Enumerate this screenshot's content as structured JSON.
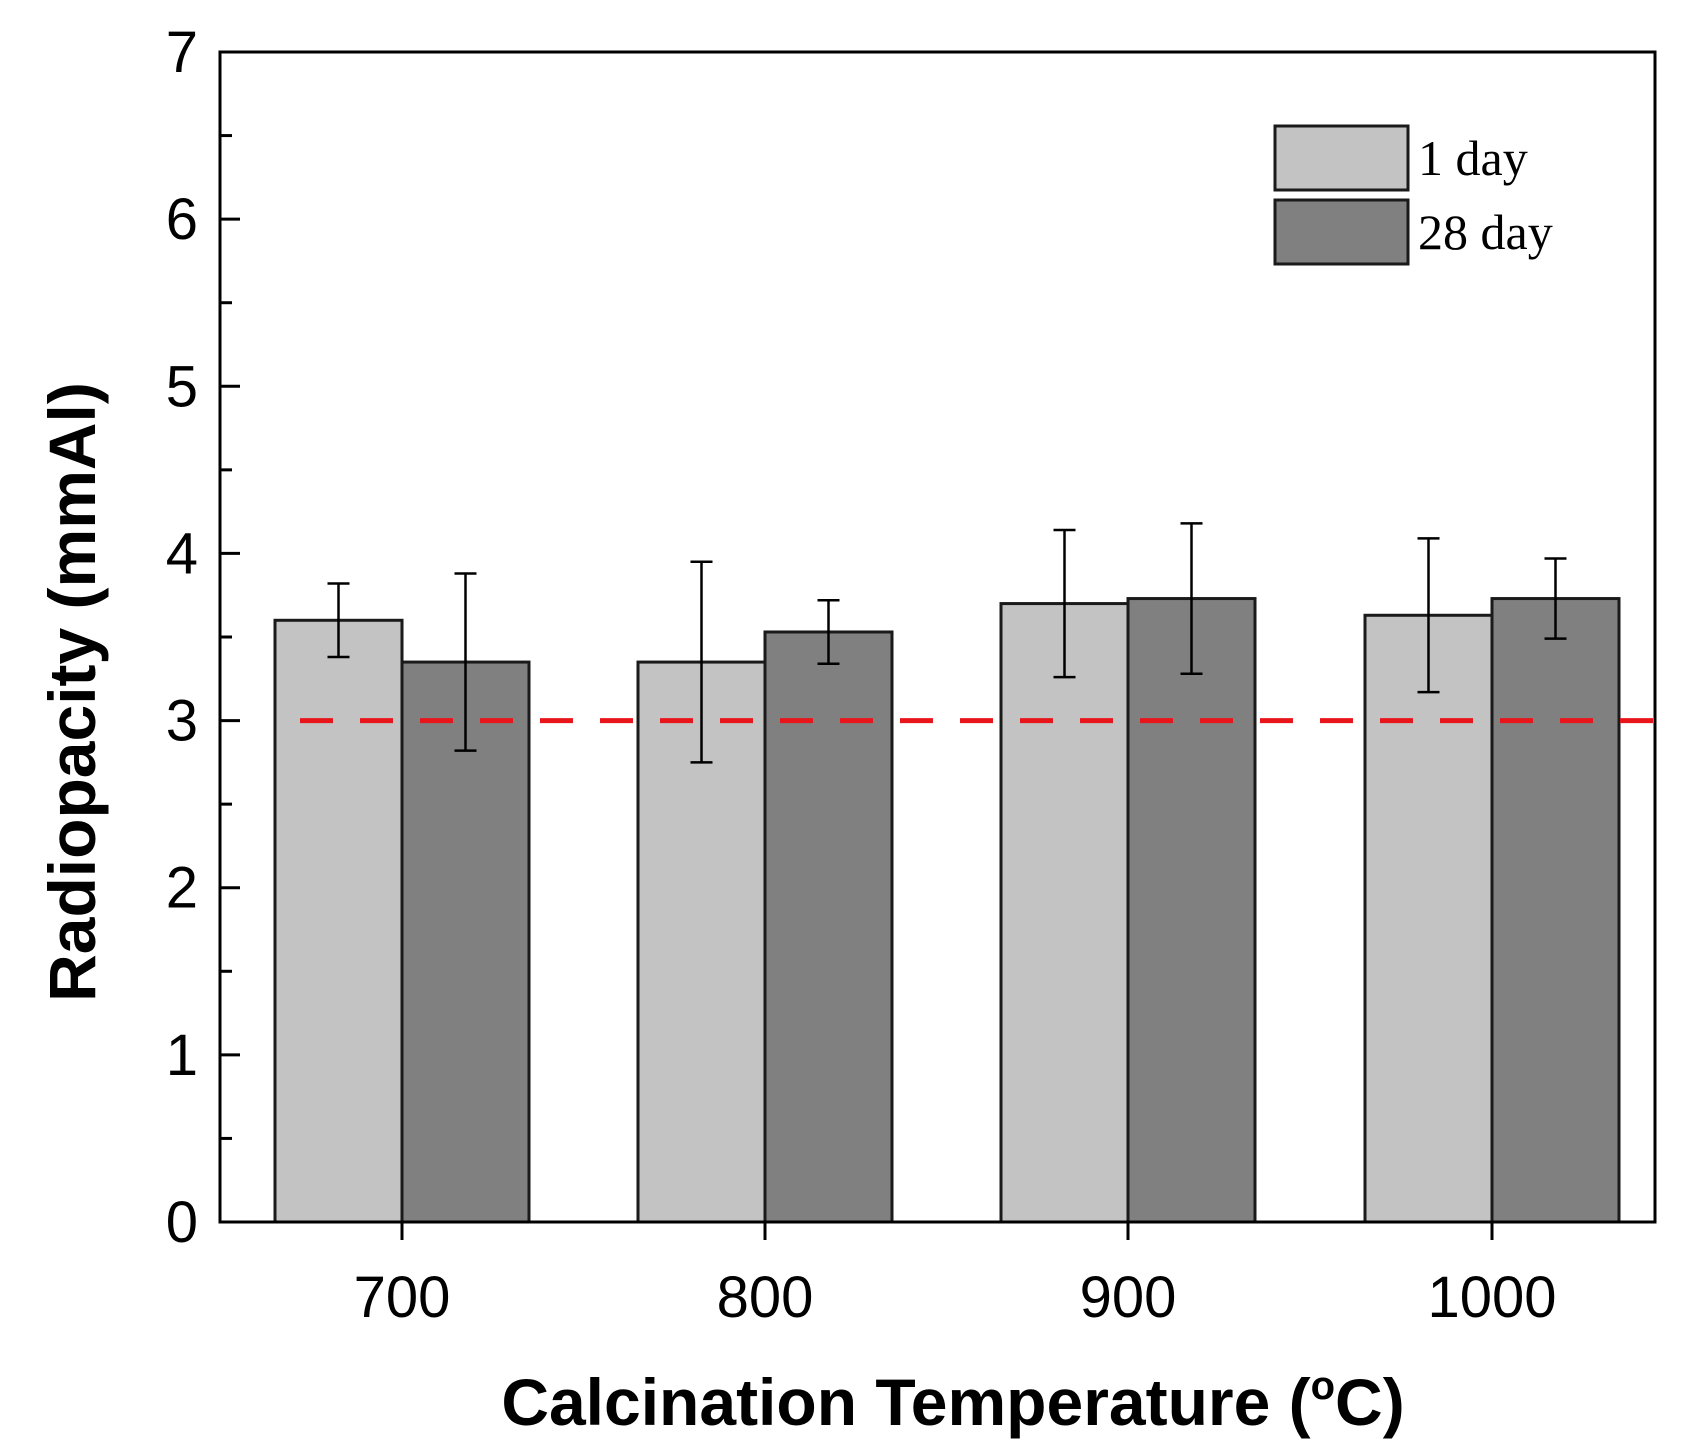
{
  "chart_data": {
    "type": "bar",
    "xlabel": "Calcination Temperature (",
    "xlabel_superscript": "o",
    "xlabel_suffix": "C)",
    "ylabel": "Radiopacity (mmAl)",
    "categories": [
      "700",
      "800",
      "900",
      "1000"
    ],
    "ylim": [
      0,
      7
    ],
    "yticks": [
      "0",
      "1",
      "2",
      "3",
      "4",
      "5",
      "6",
      "7"
    ],
    "reference_line": {
      "value": 3,
      "color": "#e8151b",
      "style": "dashed"
    },
    "legend_position": "top-right",
    "series": [
      {
        "name": "1 day",
        "color": "#c3c3c3",
        "values": [
          3.6,
          3.35,
          3.7,
          3.63
        ],
        "errors": [
          0.22,
          0.6,
          0.44,
          0.46
        ]
      },
      {
        "name": "28 day",
        "color": "#808080",
        "values": [
          3.35,
          3.53,
          3.73,
          3.73
        ],
        "errors": [
          0.53,
          0.19,
          0.45,
          0.24
        ]
      }
    ]
  }
}
